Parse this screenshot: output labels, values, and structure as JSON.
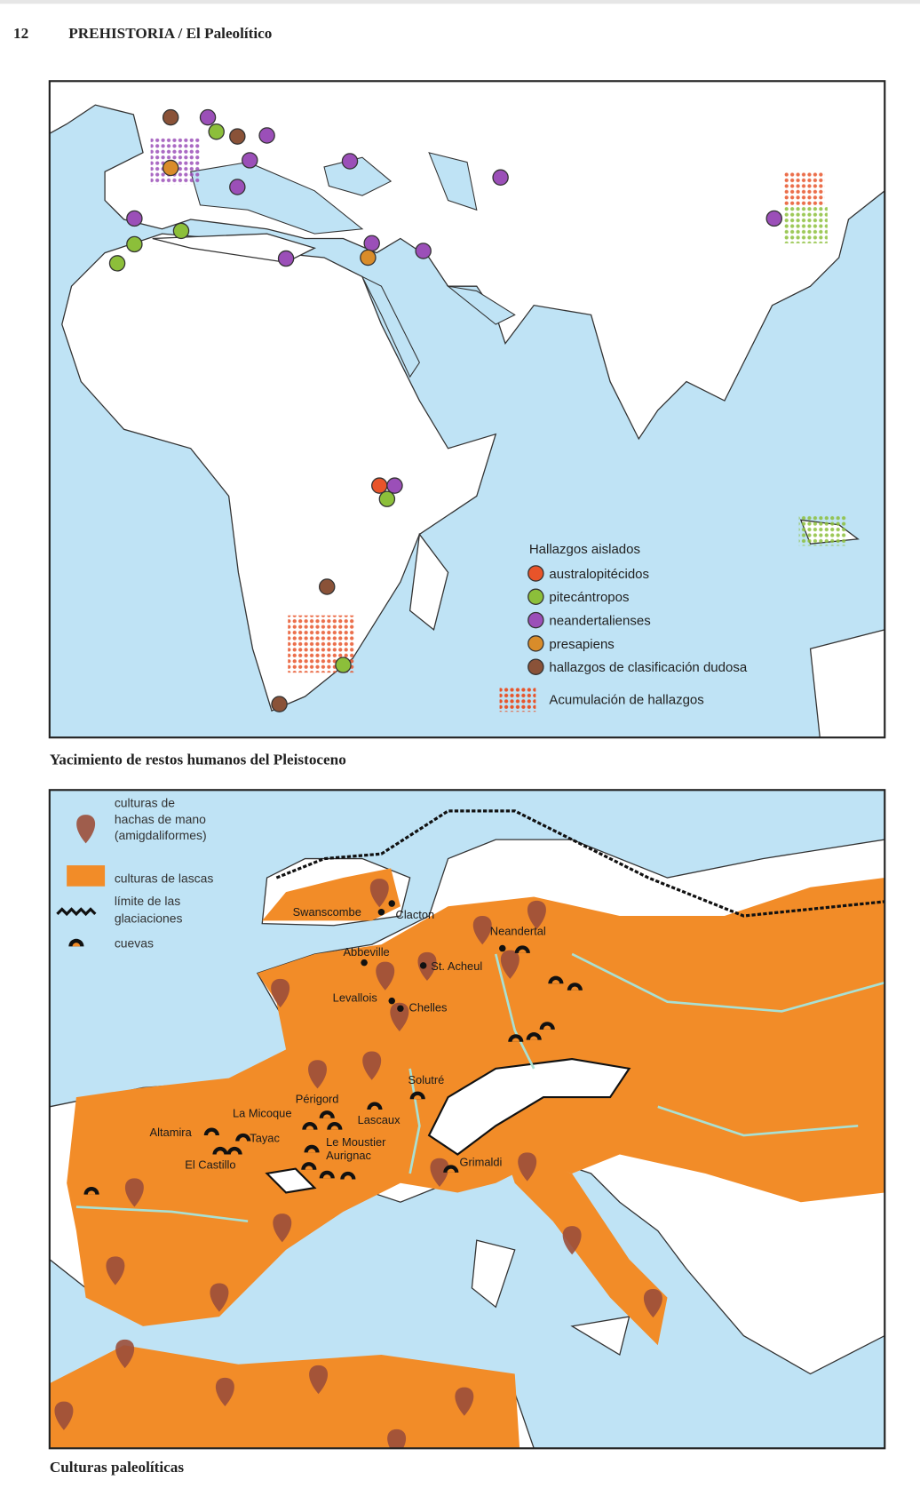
{
  "header": {
    "page_number": "12",
    "title": "PREHISTORIA / El Paleolítico"
  },
  "map1": {
    "legend": {
      "title": "Hallazgos aislados",
      "items": [
        "australopitécidos",
        "pitecántropos",
        "neandertalienses",
        "presapiens",
        "hallazgos de clasificación dudosa"
      ],
      "accumulation": "Acumulación de hallazgos"
    },
    "caption": "Yacimiento de restos humanos del Pleistoceno"
  },
  "map2": {
    "legend": {
      "hand_axes": [
        "culturas de",
        "hachas de mano",
        "(amigdaliformes)"
      ],
      "flakes": "culturas de lascas",
      "glaciation": [
        "límite de las",
        "glaciaciones"
      ],
      "caves": "cuevas"
    },
    "sites": [
      "Swanscombe",
      "Clacton",
      "Abbeville",
      "St. Acheul",
      "Neandertal",
      "Levallois",
      "Chelles",
      "Solutré",
      "Périgord",
      "La Micoque",
      "Lascaux",
      "Altamira",
      "Tayac",
      "Le Moustier",
      "Aurignac",
      "El Castillo",
      "Grimaldi"
    ],
    "caption": "Culturas paleolíticas"
  }
}
